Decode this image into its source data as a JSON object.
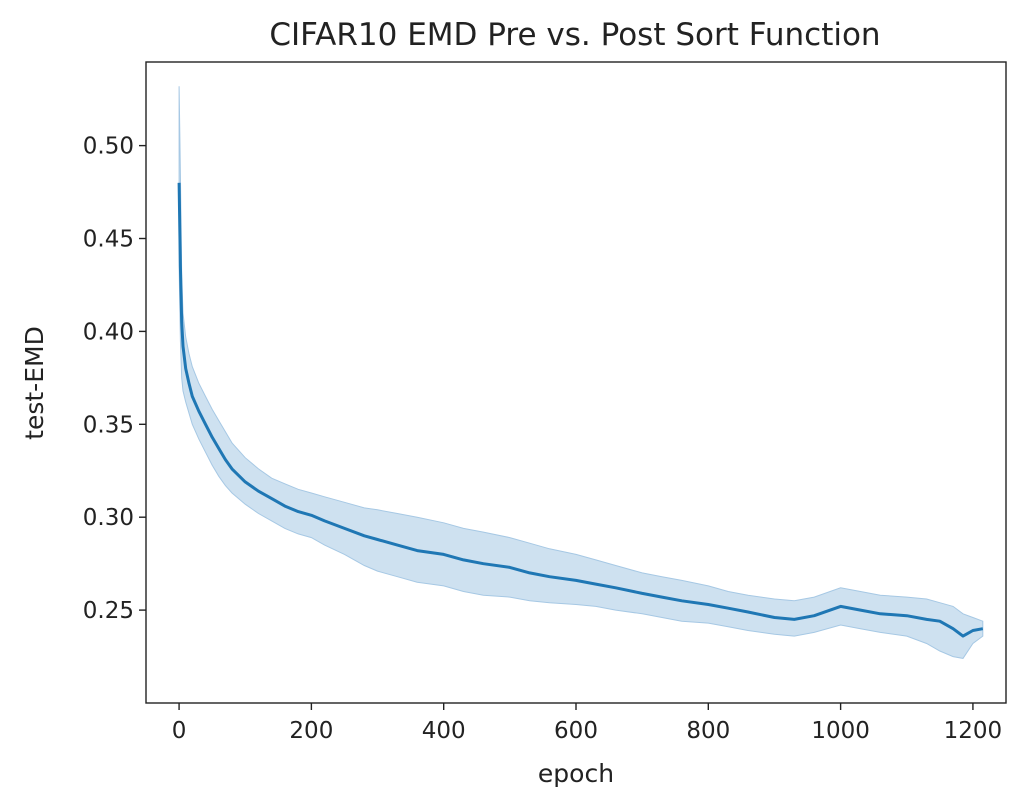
{
  "chart_data": {
    "type": "line",
    "title": "CIFAR10 EMD Pre vs. Post Sort Function",
    "xlabel": "epoch",
    "ylabel": "test-EMD",
    "xlim": [
      -50,
      1250
    ],
    "ylim": [
      0.2,
      0.545
    ],
    "xticks": [
      0,
      200,
      400,
      600,
      800,
      1000,
      1200
    ],
    "xtick_labels": [
      "0",
      "200",
      "400",
      "600",
      "800",
      "1000",
      "1200"
    ],
    "yticks": [
      0.25,
      0.3,
      0.35,
      0.4,
      0.45,
      0.5
    ],
    "ytick_labels": [
      "0.25",
      "0.30",
      "0.35",
      "0.40",
      "0.45",
      "0.50"
    ],
    "grid": false,
    "legend": "none",
    "series": [
      {
        "color": "#1f77b4",
        "band_color": "#a6c8e4",
        "x": [
          0,
          2,
          4,
          6,
          10,
          15,
          20,
          30,
          40,
          50,
          60,
          70,
          80,
          100,
          120,
          140,
          160,
          180,
          200,
          220,
          250,
          280,
          300,
          330,
          360,
          400,
          430,
          460,
          500,
          530,
          560,
          600,
          630,
          660,
          700,
          730,
          760,
          800,
          830,
          860,
          900,
          930,
          960,
          1000,
          1030,
          1060,
          1100,
          1130,
          1150,
          1170,
          1185,
          1200,
          1215
        ],
        "y": [
          0.48,
          0.435,
          0.405,
          0.392,
          0.38,
          0.372,
          0.365,
          0.357,
          0.35,
          0.343,
          0.337,
          0.331,
          0.326,
          0.319,
          0.314,
          0.31,
          0.306,
          0.303,
          0.301,
          0.298,
          0.294,
          0.29,
          0.288,
          0.285,
          0.282,
          0.28,
          0.277,
          0.275,
          0.273,
          0.27,
          0.268,
          0.266,
          0.264,
          0.262,
          0.259,
          0.257,
          0.255,
          0.253,
          0.251,
          0.249,
          0.246,
          0.245,
          0.247,
          0.252,
          0.25,
          0.248,
          0.247,
          0.245,
          0.244,
          0.24,
          0.236,
          0.239,
          0.24
        ],
        "lower": [
          0.435,
          0.395,
          0.375,
          0.368,
          0.362,
          0.356,
          0.35,
          0.342,
          0.335,
          0.328,
          0.322,
          0.317,
          0.313,
          0.307,
          0.302,
          0.298,
          0.294,
          0.291,
          0.289,
          0.285,
          0.28,
          0.274,
          0.271,
          0.268,
          0.265,
          0.263,
          0.26,
          0.258,
          0.257,
          0.255,
          0.254,
          0.253,
          0.252,
          0.25,
          0.248,
          0.246,
          0.244,
          0.243,
          0.241,
          0.239,
          0.237,
          0.236,
          0.238,
          0.242,
          0.24,
          0.238,
          0.236,
          0.232,
          0.228,
          0.225,
          0.224,
          0.232,
          0.236
        ],
        "upper": [
          0.532,
          0.485,
          0.43,
          0.41,
          0.397,
          0.388,
          0.381,
          0.372,
          0.365,
          0.358,
          0.352,
          0.346,
          0.34,
          0.332,
          0.326,
          0.321,
          0.318,
          0.315,
          0.313,
          0.311,
          0.308,
          0.305,
          0.304,
          0.302,
          0.3,
          0.297,
          0.294,
          0.292,
          0.289,
          0.286,
          0.283,
          0.28,
          0.277,
          0.274,
          0.27,
          0.268,
          0.266,
          0.263,
          0.26,
          0.258,
          0.256,
          0.255,
          0.257,
          0.262,
          0.26,
          0.258,
          0.257,
          0.256,
          0.254,
          0.252,
          0.248,
          0.246,
          0.244
        ]
      }
    ]
  }
}
